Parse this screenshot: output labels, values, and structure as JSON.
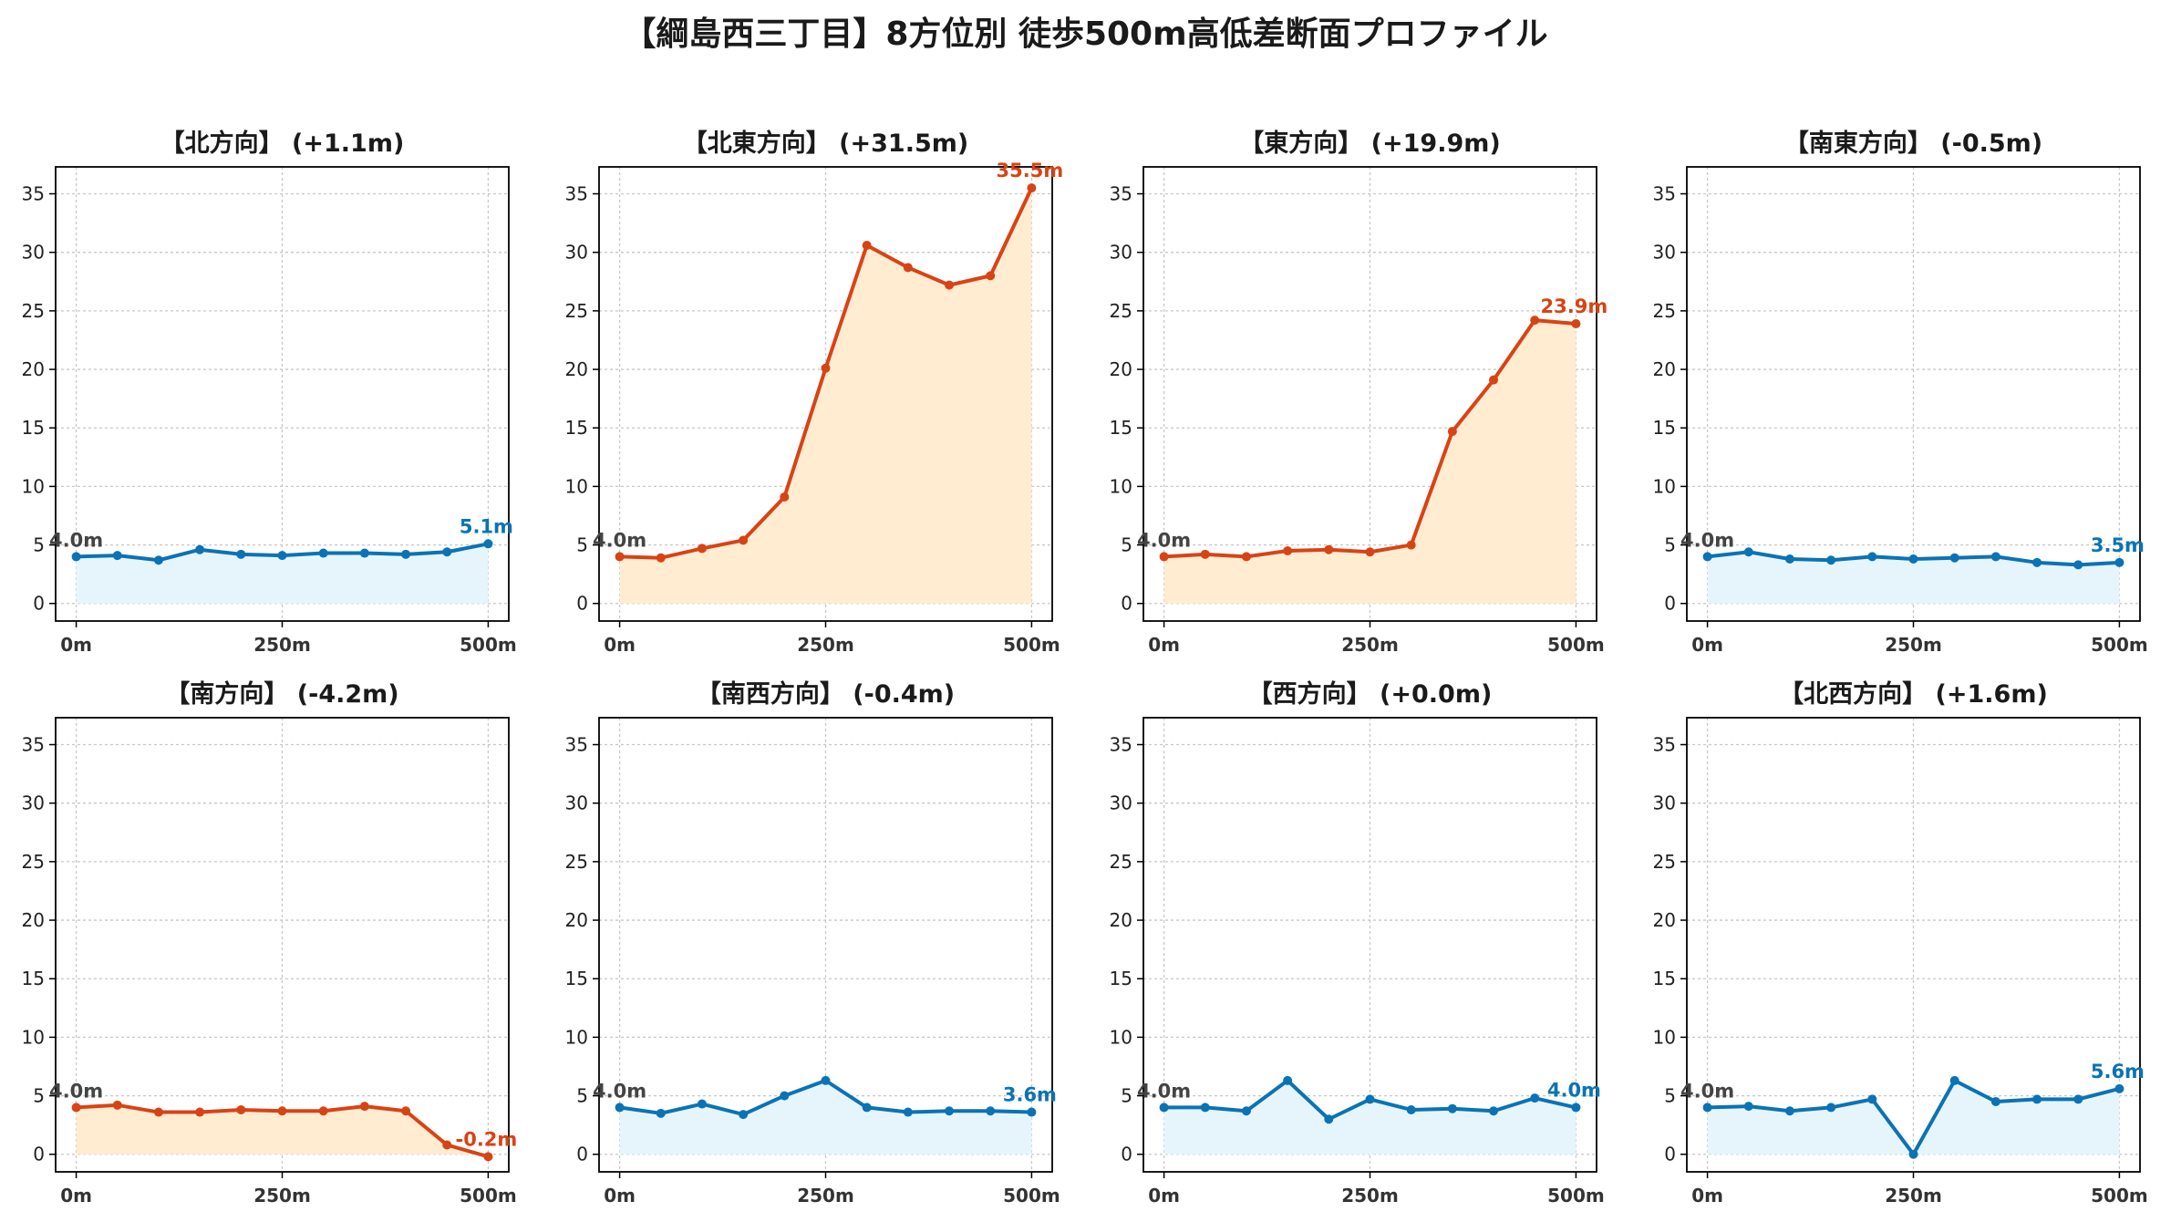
{
  "title": "【綱島西三丁目】8方位別 徒歩500m高低差断面プロファイル",
  "colors": {
    "up_line": "#d84315",
    "up_fill": "#ffecd1",
    "flat_line": "#0a73b5",
    "flat_fill": "#e6f5fc",
    "start_label": "#444444",
    "grid": "#c8c8c8"
  },
  "chart_data": [
    {
      "type": "line",
      "title": "【北方向】 (+1.1m)",
      "style": "flat",
      "x": [
        0,
        50,
        100,
        150,
        200,
        250,
        300,
        350,
        400,
        450,
        500
      ],
      "values": [
        4.0,
        4.1,
        3.7,
        4.6,
        4.2,
        4.1,
        4.3,
        4.3,
        4.2,
        4.4,
        5.1
      ],
      "start_label": "4.0m",
      "end_label": "5.1m",
      "xticks": [
        "0m",
        "250m",
        "500m"
      ],
      "yticks": [
        0,
        5,
        10,
        15,
        20,
        25,
        30,
        35
      ],
      "ylim": [
        -1.5,
        37.3
      ],
      "xlim": [
        -25,
        525
      ],
      "grid": true
    },
    {
      "type": "line",
      "title": "【北東方向】 (+31.5m)",
      "style": "up",
      "x": [
        0,
        50,
        100,
        150,
        200,
        250,
        300,
        350,
        400,
        450,
        500
      ],
      "values": [
        4.0,
        3.9,
        4.7,
        5.4,
        9.1,
        20.1,
        30.6,
        28.7,
        27.2,
        28.0,
        35.5
      ],
      "start_label": "4.0m",
      "end_label": "35.5m",
      "xticks": [
        "0m",
        "250m",
        "500m"
      ],
      "yticks": [
        0,
        5,
        10,
        15,
        20,
        25,
        30,
        35
      ],
      "ylim": [
        -1.5,
        37.3
      ],
      "xlim": [
        -25,
        525
      ],
      "grid": true
    },
    {
      "type": "line",
      "title": "【東方向】 (+19.9m)",
      "style": "up",
      "x": [
        0,
        50,
        100,
        150,
        200,
        250,
        300,
        350,
        400,
        450,
        500
      ],
      "values": [
        4.0,
        4.2,
        4.0,
        4.5,
        4.6,
        4.4,
        5.0,
        14.7,
        19.1,
        24.2,
        23.9
      ],
      "start_label": "4.0m",
      "end_label": "23.9m",
      "xticks": [
        "0m",
        "250m",
        "500m"
      ],
      "yticks": [
        0,
        5,
        10,
        15,
        20,
        25,
        30,
        35
      ],
      "ylim": [
        -1.5,
        37.3
      ],
      "xlim": [
        -25,
        525
      ],
      "grid": true
    },
    {
      "type": "line",
      "title": "【南東方向】 (-0.5m)",
      "style": "flat",
      "x": [
        0,
        50,
        100,
        150,
        200,
        250,
        300,
        350,
        400,
        450,
        500
      ],
      "values": [
        4.0,
        4.4,
        3.8,
        3.7,
        4.0,
        3.8,
        3.9,
        4.0,
        3.5,
        3.3,
        3.5
      ],
      "start_label": "4.0m",
      "end_label": "3.5m",
      "xticks": [
        "0m",
        "250m",
        "500m"
      ],
      "yticks": [
        0,
        5,
        10,
        15,
        20,
        25,
        30,
        35
      ],
      "ylim": [
        -1.5,
        37.3
      ],
      "xlim": [
        -25,
        525
      ],
      "grid": true
    },
    {
      "type": "line",
      "title": "【南方向】 (-4.2m)",
      "style": "up",
      "x": [
        0,
        50,
        100,
        150,
        200,
        250,
        300,
        350,
        400,
        450,
        500
      ],
      "values": [
        4.0,
        4.2,
        3.6,
        3.6,
        3.8,
        3.7,
        3.7,
        4.1,
        3.7,
        0.8,
        -0.2
      ],
      "start_label": "4.0m",
      "end_label": "-0.2m",
      "xticks": [
        "0m",
        "250m",
        "500m"
      ],
      "yticks": [
        0,
        5,
        10,
        15,
        20,
        25,
        30,
        35
      ],
      "ylim": [
        -1.5,
        37.3
      ],
      "xlim": [
        -25,
        525
      ],
      "grid": true
    },
    {
      "type": "line",
      "title": "【南西方向】 (-0.4m)",
      "style": "flat",
      "x": [
        0,
        50,
        100,
        150,
        200,
        250,
        300,
        350,
        400,
        450,
        500
      ],
      "values": [
        4.0,
        3.5,
        4.3,
        3.4,
        5.0,
        6.3,
        4.0,
        3.6,
        3.7,
        3.7,
        3.6
      ],
      "start_label": "4.0m",
      "end_label": "3.6m",
      "xticks": [
        "0m",
        "250m",
        "500m"
      ],
      "yticks": [
        0,
        5,
        10,
        15,
        20,
        25,
        30,
        35
      ],
      "ylim": [
        -1.5,
        37.3
      ],
      "xlim": [
        -25,
        525
      ],
      "grid": true
    },
    {
      "type": "line",
      "title": "【西方向】 (+0.0m)",
      "style": "flat",
      "x": [
        0,
        50,
        100,
        150,
        200,
        250,
        300,
        350,
        400,
        450,
        500
      ],
      "values": [
        4.0,
        4.0,
        3.7,
        6.3,
        3.0,
        4.7,
        3.8,
        3.9,
        3.7,
        4.8,
        4.0
      ],
      "start_label": "4.0m",
      "end_label": "4.0m",
      "xticks": [
        "0m",
        "250m",
        "500m"
      ],
      "yticks": [
        0,
        5,
        10,
        15,
        20,
        25,
        30,
        35
      ],
      "ylim": [
        -1.5,
        37.3
      ],
      "xlim": [
        -25,
        525
      ],
      "grid": true
    },
    {
      "type": "line",
      "title": "【北西方向】 (+1.6m)",
      "style": "flat",
      "x": [
        0,
        50,
        100,
        150,
        200,
        250,
        300,
        350,
        400,
        450,
        500
      ],
      "values": [
        4.0,
        4.1,
        3.7,
        4.0,
        4.7,
        0.0,
        6.3,
        4.5,
        4.7,
        4.7,
        5.6
      ],
      "start_label": "4.0m",
      "end_label": "5.6m",
      "xticks": [
        "0m",
        "250m",
        "500m"
      ],
      "yticks": [
        0,
        5,
        10,
        15,
        20,
        25,
        30,
        35
      ],
      "ylim": [
        -1.5,
        37.3
      ],
      "xlim": [
        -25,
        525
      ],
      "grid": true
    }
  ]
}
